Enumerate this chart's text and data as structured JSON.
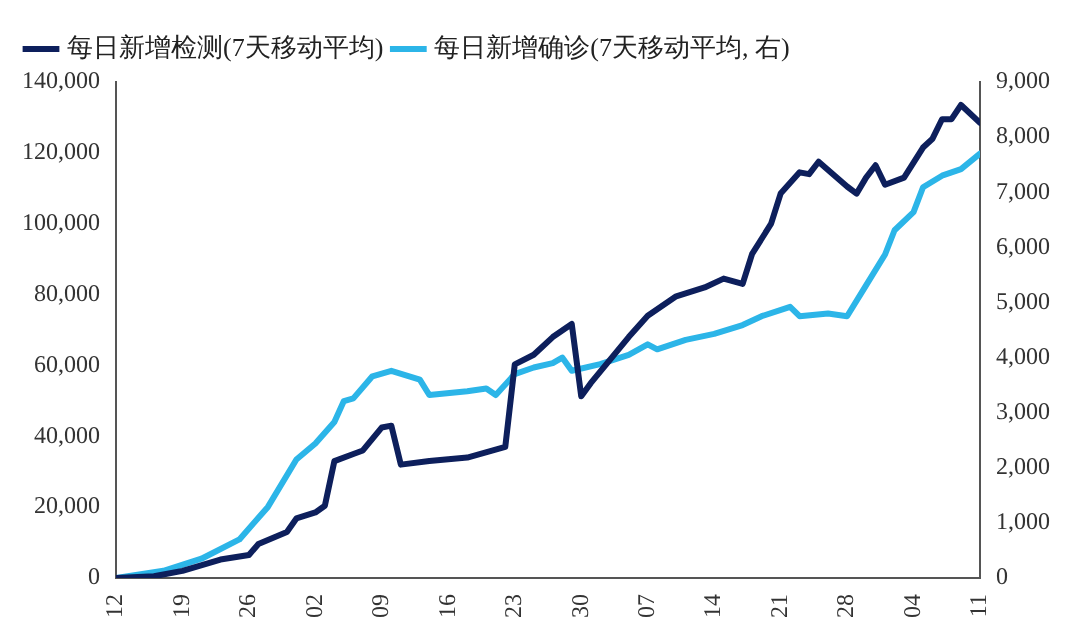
{
  "chart_data": {
    "type": "line",
    "x": [
      "--03-12",
      "--03-16",
      "--03-19",
      "--03-23",
      "--03-26",
      "--03-27",
      "--03-30",
      "--03-31",
      "--04-02",
      "--04-03",
      "--04-04",
      "--04-06",
      "--04-07",
      "--04-09",
      "--04-10",
      "--04-11",
      "--04-14",
      "--04-18",
      "--04-22",
      "--04-23",
      "--04-25",
      "--04-27",
      "--04-29",
      "--04-30",
      "--05-01",
      "--05-05",
      "--05-07",
      "--05-10",
      "--05-13",
      "--05-15",
      "--05-17",
      "--05-18",
      "--05-20",
      "--05-21",
      "--05-23",
      "--05-24",
      "--05-25",
      "--05-28",
      "--05-29",
      "--05-30",
      "--05-31",
      "--06-01",
      "--06-03",
      "--06-05",
      "--06-06",
      "--06-07",
      "--06-08",
      "--06-09",
      "--06-11"
    ],
    "series": [
      {
        "name": "每日新增检测(7天移动平均)",
        "color": "#0d1f5c",
        "values": [
          0,
          500,
          2000,
          5200,
          6500,
          9600,
          13000,
          16800,
          18500,
          20400,
          33000,
          35000,
          36000,
          42500,
          43000,
          32000,
          33000,
          34000,
          37000,
          60300,
          63000,
          68000,
          71700,
          51300,
          55000,
          68000,
          74000,
          79500,
          82000,
          84500,
          83000,
          91500,
          100000,
          108500,
          114500,
          114000,
          117500,
          110500,
          108500,
          113000,
          116500,
          111000,
          113000,
          121500,
          124000,
          129500,
          129500,
          133500,
          128500
        ]
      },
      {
        "name": "每日新增确诊(7天移动平均, 右)",
        "color": "#2cb5e8",
        "axis": "y2",
        "x": [
          "--03-12",
          "--03-17",
          "--03-21",
          "--03-25",
          "--03-28",
          "--03-31",
          "--04-02",
          "--04-04",
          "--04-05",
          "--04-06",
          "--04-08",
          "--04-10",
          "--04-13",
          "--04-14",
          "--04-18",
          "--04-20",
          "--04-21",
          "--04-23",
          "--04-25",
          "--04-27",
          "--04-28",
          "--04-29",
          "--05-02",
          "--05-05",
          "--05-07",
          "--05-08",
          "--05-11",
          "--05-14",
          "--05-17",
          "--05-19",
          "--05-22",
          "--05-23",
          "--05-26",
          "--05-28",
          "--05-30",
          "--06-01",
          "--06-02",
          "--06-04",
          "--06-05",
          "--06-07",
          "--06-09",
          "--06-11"
        ],
        "values": [
          0,
          130,
          350,
          700,
          1290,
          2150,
          2440,
          2830,
          3210,
          3260,
          3660,
          3760,
          3600,
          3320,
          3390,
          3440,
          3320,
          3700,
          3820,
          3900,
          4000,
          3760,
          3880,
          4050,
          4240,
          4150,
          4320,
          4430,
          4590,
          4750,
          4920,
          4750,
          4800,
          4750,
          5310,
          5870,
          6310,
          6640,
          7090,
          7300,
          7420,
          7700
        ]
      }
    ],
    "xlim": [
      "--03-12",
      "--06-11"
    ],
    "xticks": [
      {
        "value": "--03-12",
        "label": "12"
      },
      {
        "value": "--03-19",
        "label": "19"
      },
      {
        "value": "--03-26",
        "label": "26"
      },
      {
        "value": "--04-02",
        "label": "02"
      },
      {
        "value": "--04-09",
        "label": "09"
      },
      {
        "value": "--04-16",
        "label": "16"
      },
      {
        "value": "--04-23",
        "label": "23"
      },
      {
        "value": "--04-30",
        "label": "30"
      },
      {
        "value": "--05-07",
        "label": "07"
      },
      {
        "value": "--05-14",
        "label": "14"
      },
      {
        "value": "--05-21",
        "label": "21"
      },
      {
        "value": "--05-28",
        "label": "28"
      },
      {
        "value": "--06-04",
        "label": "04"
      },
      {
        "value": "--06-11",
        "label": "11"
      }
    ],
    "ylim": [
      0,
      140000
    ],
    "yticks": [
      0,
      {
        "value": 20000,
        "label": "20,000"
      },
      {
        "value": 40000,
        "label": "40,000"
      },
      {
        "value": 60000,
        "label": "60,000"
      },
      {
        "value": 80000,
        "label": "80,000"
      },
      {
        "value": 100000,
        "label": "100,000"
      },
      {
        "value": 120000,
        "label": "120,000"
      },
      {
        "value": 140000,
        "label": "140,000"
      }
    ],
    "y2lim": [
      0,
      9000
    ],
    "y2ticks": [
      0,
      {
        "value": 1000,
        "label": "1,000"
      },
      {
        "value": 2000,
        "label": "2,000"
      },
      {
        "value": 3000,
        "label": "3,000"
      },
      {
        "value": 4000,
        "label": "4,000"
      },
      {
        "value": 5000,
        "label": "5,000"
      },
      {
        "value": 6000,
        "label": "6,000"
      },
      {
        "value": 7000,
        "label": "7,000"
      },
      {
        "value": 8000,
        "label": "8,000"
      },
      {
        "value": 9000,
        "label": "9,000"
      }
    ],
    "grid": false,
    "legend": "top left",
    "marker": "none",
    "line_style": "solid"
  }
}
